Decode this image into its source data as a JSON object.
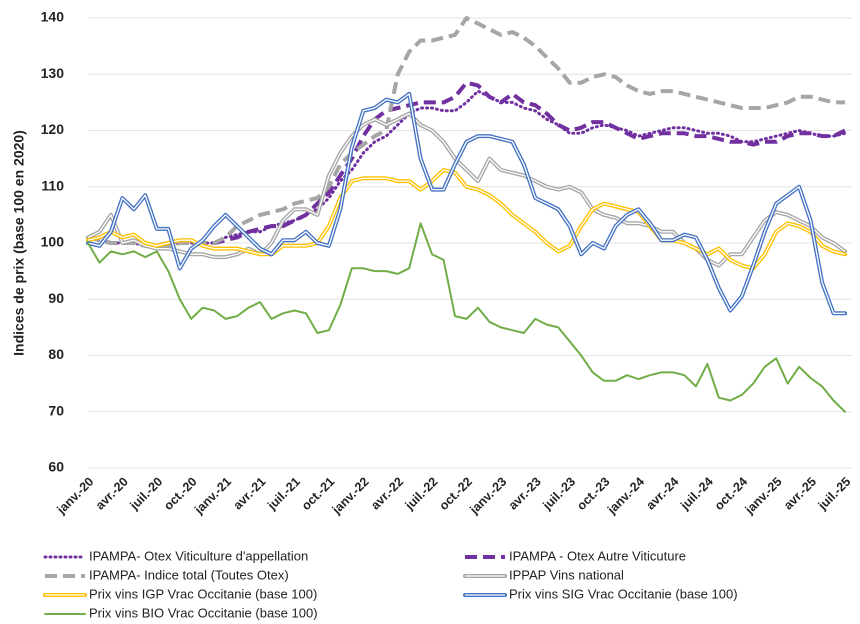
{
  "chart_data": {
    "type": "line",
    "y_label": "Indices de prix (base 100 en 2020)",
    "categories": [
      "janv.-20",
      null,
      null,
      "avr.-20",
      null,
      null,
      "juil.-20",
      null,
      null,
      "oct.-20",
      null,
      null,
      "janv.-21",
      null,
      null,
      "avr.-21",
      null,
      null,
      "juil.-21",
      null,
      null,
      "oct.-21",
      null,
      null,
      "janv.-22",
      null,
      null,
      "avr.-22",
      null,
      null,
      "juil.-22",
      null,
      null,
      "oct.-22",
      null,
      null,
      "janv.-23",
      null,
      null,
      "avr.-23",
      null,
      null,
      "juil.-23",
      null,
      null,
      "oct.-23",
      null,
      null,
      "janv.-24",
      null,
      null,
      "avr.-24",
      null,
      null,
      "juil.-24",
      null,
      null,
      "oct.-24",
      null,
      null,
      "janv.-25",
      null,
      null,
      "avr.-25",
      null,
      null,
      "juil.-25"
    ],
    "ylim": [
      60,
      140
    ],
    "yticks": [
      60,
      70,
      80,
      90,
      100,
      110,
      120,
      130,
      140
    ],
    "grid": true,
    "series": [
      {
        "name": "IPAMPA- Otex Viticulture d'appellation",
        "color": "#7030a0",
        "style": "dotted",
        "values": [
          101,
          100.5,
          100,
          100,
          100,
          99.5,
          99.5,
          100,
          100,
          100,
          100,
          100,
          101,
          101.5,
          102,
          102,
          103,
          103.5,
          104,
          105,
          106,
          108,
          111,
          113,
          116,
          118,
          119,
          121,
          123,
          124,
          124,
          123.5,
          123.5,
          125,
          127,
          126,
          125,
          125,
          124,
          123.5,
          122,
          121,
          119.5,
          119.5,
          120.5,
          121,
          120.5,
          120,
          119,
          119.5,
          120,
          120.5,
          120.5,
          120,
          119.5,
          119.5,
          119,
          118,
          118,
          118.5,
          119,
          119.5,
          120,
          119.5,
          119,
          119,
          119.5
        ]
      },
      {
        "name": "IPAMPA - Otex Autre Viticuture",
        "color": "#7030a0",
        "style": "dashed",
        "values": [
          101,
          100.5,
          100,
          100,
          100,
          99.5,
          99.5,
          100,
          100,
          100,
          100,
          100,
          100.5,
          101,
          102,
          102.5,
          103,
          103,
          104,
          105,
          107,
          109,
          112,
          115,
          119,
          122,
          123.5,
          124,
          124.5,
          125,
          125,
          125,
          126,
          128.5,
          128,
          126,
          125,
          126.5,
          125,
          124.5,
          123,
          121,
          120,
          120.5,
          121.5,
          121.5,
          120.5,
          119.5,
          118.5,
          119,
          119.5,
          119.5,
          119.5,
          119,
          119,
          118.5,
          118,
          118,
          117.5,
          118,
          118,
          119,
          119.5,
          119.5,
          119,
          119,
          120
        ]
      },
      {
        "name": "IPAMPA- Indice total (Toutes Otex)",
        "color": "#a6a6a6",
        "style": "dashed",
        "values": [
          101,
          100.5,
          100,
          100,
          100,
          99.5,
          99.5,
          99.5,
          100,
          100,
          100,
          100,
          101,
          103,
          104,
          105,
          105.5,
          106,
          107,
          107.5,
          108,
          110,
          114,
          116,
          117.5,
          119,
          120,
          130,
          134,
          136,
          136,
          136.5,
          137,
          140,
          139,
          138,
          137,
          137.5,
          136.5,
          135,
          133,
          131,
          128.5,
          128.5,
          129.5,
          130,
          129.5,
          128,
          127,
          126.5,
          127,
          127,
          126.5,
          126,
          125.5,
          125,
          124.5,
          124,
          124,
          124,
          124.5,
          125,
          126,
          126,
          125.5,
          125,
          125
        ]
      },
      {
        "name": "IPPAP Vins national",
        "color": "#a6a6a6",
        "style": "double",
        "values": [
          101,
          102,
          105,
          100,
          100.5,
          99.5,
          99,
          99,
          98.5,
          98,
          98,
          97.5,
          97.5,
          98,
          99,
          98,
          100,
          104,
          106,
          106,
          105,
          112,
          116,
          119,
          121,
          122,
          121,
          122,
          123,
          121,
          120,
          118,
          115,
          113,
          111,
          115,
          113,
          112.5,
          112,
          111,
          110,
          109.5,
          110,
          109,
          106,
          105,
          104.5,
          103.5,
          103.5,
          103,
          102,
          102,
          100,
          99,
          97,
          96,
          98,
          98,
          101,
          104,
          105.5,
          105,
          104,
          103,
          101,
          100,
          98.5
        ]
      },
      {
        "name": "Prix vins IGP Vrac Occitanie (base 100)",
        "color": "#ffc000",
        "style": "double",
        "values": [
          100.5,
          101,
          102,
          101,
          101.5,
          100,
          99.5,
          100,
          100.5,
          100.5,
          99.5,
          99,
          99,
          99,
          98.5,
          98,
          98,
          99.5,
          99.5,
          99.5,
          100,
          103,
          108,
          111,
          111.5,
          111.5,
          111.5,
          111,
          111,
          109.5,
          111,
          113,
          112.5,
          110,
          109.5,
          108.5,
          107,
          105,
          103.5,
          102,
          100,
          98.5,
          99.5,
          103,
          106,
          107,
          106.5,
          106,
          105.5,
          103,
          100.5,
          100.5,
          100,
          99,
          98,
          99,
          97,
          96,
          95.5,
          98,
          102,
          103.5,
          103,
          102,
          99.5,
          98.5,
          98
        ]
      },
      {
        "name": "Prix vins SIG Vrac Occitanie (base 100)",
        "color": "#4472c4",
        "style": "double",
        "values": [
          100,
          99.5,
          102,
          108,
          106,
          108.5,
          102.5,
          102.5,
          95.5,
          99,
          100.5,
          103,
          105,
          103,
          101,
          99,
          98,
          100.5,
          100.5,
          102,
          100,
          99.5,
          106,
          117,
          123.5,
          124,
          125.5,
          125,
          126.5,
          115,
          109.5,
          109.5,
          114,
          118,
          119,
          119,
          118.5,
          118,
          114,
          108,
          107,
          106,
          103,
          98,
          100,
          99,
          103,
          105,
          106,
          103.5,
          100.5,
          100.5,
          101.5,
          101,
          97,
          92,
          88,
          90.5,
          96,
          102,
          107,
          108.5,
          110,
          104,
          93,
          87.5,
          87.5
        ]
      },
      {
        "name": "Prix vins BIO Vrac Occitanie (base 100)",
        "color": "#70ad47",
        "style": "solid",
        "values": [
          100,
          96.5,
          98.5,
          98,
          98.5,
          97.5,
          98.5,
          95,
          90,
          86.5,
          88.5,
          88,
          86.5,
          87,
          88.5,
          89.5,
          86.5,
          87.5,
          88,
          87.5,
          84,
          84.5,
          89,
          95.5,
          95.5,
          95,
          95,
          94.5,
          95.5,
          103.5,
          98,
          97,
          87,
          86.5,
          88.5,
          86,
          85,
          84.5,
          84,
          86.5,
          85.5,
          85,
          82.5,
          80,
          77,
          75.5,
          75.5,
          76.5,
          75.8,
          76.5,
          77,
          77,
          76.5,
          74.5,
          78.5,
          72.5,
          72,
          73,
          75,
          78,
          79.5,
          75,
          78,
          76,
          74.5,
          72,
          70
        ]
      }
    ]
  }
}
